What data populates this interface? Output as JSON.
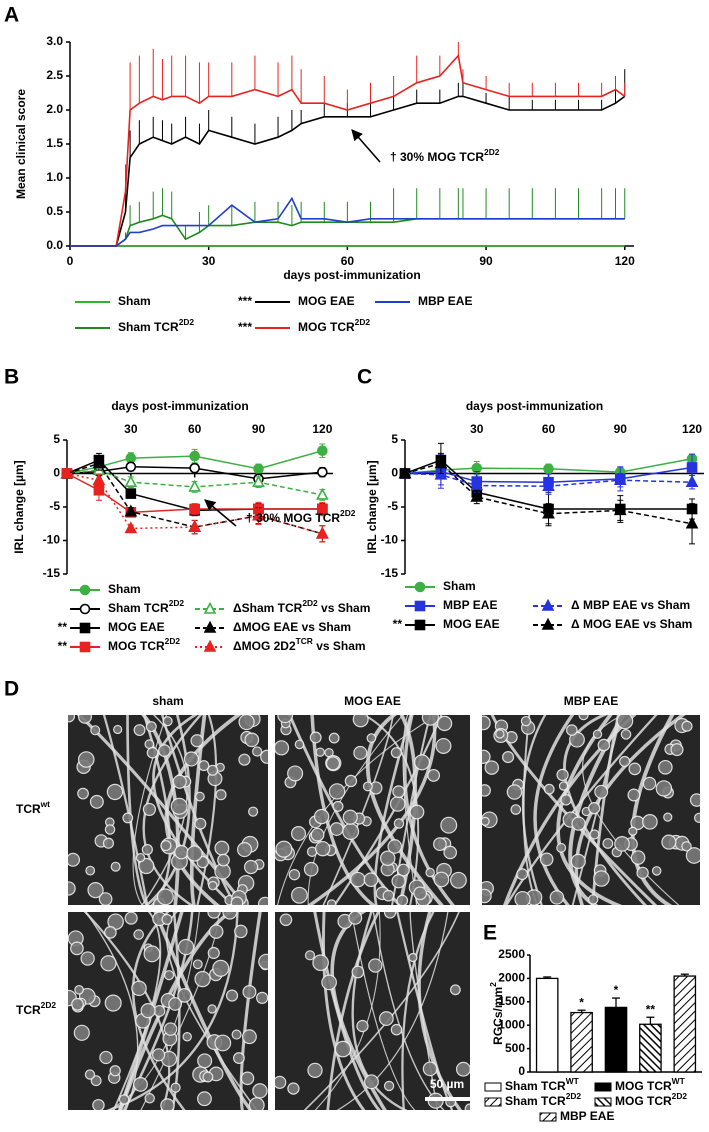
{
  "chart_data": [
    {
      "type": "line",
      "panel": "A",
      "ylabel": "Mean clinical score",
      "xlabel": "days post-immunization",
      "xlim": [
        0,
        122
      ],
      "ylim": [
        0,
        3
      ],
      "xticks": [
        0,
        30,
        60,
        90,
        120
      ],
      "yticks": [
        {
          "value": 0,
          "label": "0.0"
        },
        {
          "value": 0.5,
          "label": "0.5"
        },
        {
          "value": 1,
          "label": "1.0"
        },
        {
          "value": 1.5,
          "label": "1.5"
        },
        {
          "value": 2,
          "label": "2.0"
        },
        {
          "value": 2.5,
          "label": "2.5"
        },
        {
          "value": 3,
          "label": "3.0"
        }
      ],
      "xaxis_position": "bottom",
      "error_bars": "upper",
      "annotation": [
        "† 30% MOG TCR",
        "2D2"
      ],
      "x": [
        0,
        5,
        10,
        12,
        13,
        15,
        18,
        20,
        22,
        25,
        28,
        30,
        35,
        40,
        45,
        48,
        50,
        55,
        60,
        65,
        70,
        75,
        80,
        84,
        85,
        90,
        95,
        100,
        105,
        110,
        115,
        118,
        120
      ],
      "series": [
        {
          "name": "Sham",
          "color": "#2db52d",
          "dash": "solid",
          "values": [
            0,
            0,
            0,
            0,
            0,
            0,
            0,
            0,
            0,
            0,
            0,
            0,
            0,
            0,
            0,
            0,
            0,
            0,
            0,
            0,
            0,
            0,
            0,
            0,
            0,
            0,
            0,
            0,
            0,
            0,
            0,
            0,
            0
          ]
        },
        {
          "name": [
            "Sham TCR",
            "2D2"
          ],
          "color": "#1f8a1f",
          "dash": "solid",
          "values": [
            0,
            0,
            0,
            0.1,
            0.3,
            0.35,
            0.4,
            0.45,
            0.4,
            0.1,
            0.2,
            0.3,
            0.3,
            0.35,
            0.35,
            0.3,
            0.35,
            0.35,
            0.35,
            0.35,
            0.35,
            0.4,
            0.4,
            0.4,
            0.4,
            0.4,
            0.4,
            0.4,
            0.4,
            0.4,
            0.4,
            0.4,
            0.4
          ],
          "errors": [
            0,
            0,
            0,
            0.1,
            0.3,
            0.3,
            0.4,
            0.4,
            0.4,
            0.2,
            0.3,
            0.3,
            0.3,
            0.3,
            0.3,
            0.3,
            0.3,
            0.3,
            0.3,
            0.3,
            0.5,
            0.45,
            0.45,
            0.45,
            0.45,
            0.45,
            0.45,
            0.45,
            0.45,
            0.45,
            0.45,
            0.45,
            0.45
          ]
        },
        {
          "name": "MOG EAE",
          "significance": "***",
          "color": "#000000",
          "dash": "solid",
          "values": [
            0,
            0,
            0,
            0.5,
            1.3,
            1.5,
            1.6,
            1.55,
            1.5,
            1.6,
            1.5,
            1.7,
            1.6,
            1.5,
            1.6,
            1.7,
            1.8,
            1.9,
            1.9,
            1.9,
            2.0,
            2.1,
            2.1,
            2.2,
            2.2,
            2.1,
            2.0,
            2.0,
            2.0,
            2.0,
            2.0,
            2.1,
            2.2
          ],
          "errors": [
            0,
            0,
            0,
            0.3,
            0.4,
            0.35,
            0.3,
            0.3,
            0.3,
            0.3,
            0.3,
            0.3,
            0.3,
            0.3,
            0.3,
            0.3,
            0.2,
            0.2,
            0.2,
            0.2,
            0.2,
            0.2,
            0.2,
            0.2,
            0.2,
            0.15,
            0.2,
            0.15,
            0.15,
            0.15,
            0.15,
            0.2,
            0.4
          ]
        },
        {
          "name": [
            "MOG TCR",
            "2D2"
          ],
          "significance": "***",
          "color": "#e8231f",
          "dash": "solid",
          "values": [
            0,
            0,
            0,
            0.8,
            2.0,
            2.1,
            2.2,
            2.15,
            2.2,
            2.2,
            2.1,
            2.2,
            2.2,
            2.3,
            2.2,
            2.3,
            2.1,
            2.1,
            2.0,
            2.1,
            2.2,
            2.4,
            2.5,
            2.8,
            2.4,
            2.3,
            2.2,
            2.2,
            2.2,
            2.2,
            2.2,
            2.3,
            2.2
          ],
          "errors": [
            0,
            0,
            0,
            0.4,
            0.7,
            0.7,
            0.7,
            0.6,
            0.6,
            0.6,
            0.6,
            0.5,
            0.5,
            0.5,
            0.5,
            0.5,
            0.5,
            0.4,
            0.3,
            0.3,
            0.3,
            0.4,
            0.3,
            0.2,
            0.2,
            0.2,
            0.2,
            0.2,
            0.2,
            0.2,
            0.2,
            0.2,
            0.2
          ]
        },
        {
          "name": "MBP EAE",
          "color": "#1f3fd0",
          "dash": "solid",
          "values": [
            0,
            0,
            0,
            0.1,
            0.2,
            0.2,
            0.25,
            0.3,
            0.3,
            0.3,
            0.3,
            0.3,
            0.6,
            0.35,
            0.4,
            0.7,
            0.4,
            0.4,
            0.35,
            0.4,
            0.4,
            0.4,
            0.4,
            0.4,
            0.4,
            0.4,
            0.4,
            0.4,
            0.4,
            0.4,
            0.4,
            0.4,
            0.4
          ]
        }
      ]
    },
    {
      "type": "line",
      "panel": "B",
      "ylabel": "IRL change [µm]",
      "xlabel": "days post-immunization",
      "xlim": [
        0,
        125
      ],
      "ylim": [
        -15,
        5
      ],
      "xticks": [
        30,
        60,
        90,
        120
      ],
      "yticks": [
        5,
        0,
        -5,
        -10,
        -15
      ],
      "xaxis_position": "top",
      "error_bars": "both",
      "annotation": [
        "† 30% MOG TCR",
        "2D2"
      ],
      "x": [
        0,
        15,
        30,
        60,
        90,
        120
      ],
      "series": [
        {
          "name": "Sham",
          "color": "#3cb043",
          "dash": "solid",
          "marker": "circle",
          "marker_fill": "solid",
          "values": [
            0,
            1.0,
            2.3,
            2.6,
            0.7,
            3.4
          ],
          "errors": [
            0,
            0.8,
            0.8,
            1.0,
            0.7,
            1.0
          ]
        },
        {
          "name": [
            "Sham TCR",
            "2D2"
          ],
          "color": "#000000",
          "dash": "solid",
          "marker": "circle",
          "marker_fill": "open",
          "values": [
            0,
            0.3,
            1.0,
            0.8,
            -0.8,
            0.2
          ],
          "errors": [
            0,
            0.5,
            0.6,
            0.6,
            0.7,
            0.7
          ]
        },
        {
          "name": "MOG EAE",
          "significance": "**",
          "color": "#000000",
          "dash": "solid",
          "marker": "square",
          "marker_fill": "solid",
          "values": [
            0,
            2.0,
            -3.0,
            -5.5,
            -5.3,
            -5.3
          ],
          "errors": [
            0,
            1.0,
            0.5,
            0.8,
            0.8,
            0.8
          ]
        },
        {
          "name": [
            "MOG TCR",
            "2D2"
          ],
          "significance": "**",
          "color": "#e8231f",
          "dash": "solid",
          "marker": "square",
          "marker_fill": "solid",
          "values": [
            0,
            -2.5,
            -5.8,
            -5.3,
            -5.3,
            -5.3
          ],
          "errors": [
            0,
            1.5,
            0.5,
            0.8,
            1.0,
            1.0
          ]
        },
        {
          "name": [
            "ΔSham TCR",
            "2D2",
            " vs Sham"
          ],
          "color": "#3cb043",
          "dash": "dashed",
          "marker": "triangle",
          "marker_fill": "open",
          "values": [
            0,
            0.5,
            -1.3,
            -2.0,
            -1.3,
            -3.2
          ],
          "errors": [
            0,
            0.5,
            0.8,
            0.8,
            0.8,
            0.8
          ]
        },
        {
          "name": "ΔMOG EAE vs Sham",
          "color": "#000000",
          "dash": "dashed",
          "marker": "triangle",
          "marker_fill": "solid",
          "values": [
            0,
            1.5,
            -5.7,
            -8.0,
            -6.3,
            -9.0
          ],
          "errors": [
            0,
            1.0,
            0.6,
            1.0,
            1.2,
            1.2
          ]
        },
        {
          "name": [
            "ΔMOG 2D2",
            "TCR",
            " vs Sham"
          ],
          "color": "#e8231f",
          "dash": "dotted",
          "marker": "triangle",
          "marker_fill": "solid",
          "values": [
            0,
            -1.0,
            -8.2,
            -8.0,
            -6.3,
            -9.0
          ],
          "errors": [
            0,
            0.8,
            0.5,
            1.0,
            1.3,
            1.2
          ]
        }
      ]
    },
    {
      "type": "line",
      "panel": "C",
      "ylabel": "IRL change [µm]",
      "xlabel": "days post-immunization",
      "xlim": [
        0,
        125
      ],
      "ylim": [
        -15,
        5
      ],
      "xticks": [
        30,
        60,
        90,
        120
      ],
      "yticks": [
        5,
        0,
        -5,
        -10,
        -15
      ],
      "xaxis_position": "top",
      "error_bars": "both",
      "x": [
        0,
        15,
        30,
        60,
        90,
        120
      ],
      "series": [
        {
          "name": "Sham",
          "color": "#3cb043",
          "dash": "solid",
          "marker": "circle",
          "marker_fill": "solid",
          "values": [
            0,
            0.5,
            0.8,
            0.7,
            0.2,
            2.2
          ],
          "errors": [
            0,
            1.0,
            1.0,
            0.7,
            0.7,
            0.5
          ]
        },
        {
          "name": "MBP EAE",
          "color": "#2633e0",
          "dash": "solid",
          "marker": "square",
          "marker_fill": "solid",
          "values": [
            0,
            0.3,
            -1.2,
            -1.3,
            -0.8,
            0.9
          ],
          "errors": [
            0,
            2.5,
            1.5,
            1.2,
            1.8,
            2.0
          ]
        },
        {
          "name": "MOG EAE",
          "significance": "**",
          "color": "#000000",
          "dash": "solid",
          "marker": "square",
          "marker_fill": "solid",
          "values": [
            0,
            2.0,
            -2.8,
            -5.3,
            -5.3,
            -5.3
          ],
          "errors": [
            0,
            2.5,
            1.0,
            2.5,
            2.0,
            1.5
          ]
        },
        {
          "name": "Δ MBP EAE vs Sham",
          "color": "#2633e0",
          "dash": "dashed",
          "marker": "triangle",
          "marker_fill": "solid",
          "values": [
            0,
            -0.2,
            -1.8,
            -1.9,
            -1.0,
            -1.3
          ],
          "errors": [
            0,
            1.5,
            1.0,
            1.2,
            1.0,
            1.0
          ]
        },
        {
          "name": "Δ MOG EAE vs Sham",
          "color": "#000000",
          "dash": "dashed",
          "marker": "triangle",
          "marker_fill": "solid",
          "values": [
            0,
            1.5,
            -3.5,
            -6.0,
            -5.5,
            -7.5
          ],
          "errors": [
            0,
            1.5,
            1.0,
            1.5,
            1.5,
            3.0
          ]
        }
      ]
    },
    {
      "type": "bar",
      "panel": "E",
      "ylabel": [
        "RGCs/mm",
        "2"
      ],
      "ylim": [
        0,
        2500
      ],
      "yticks": [
        0,
        500,
        1000,
        1500,
        2000,
        2500
      ],
      "categories": [
        [
          "Sham TCR",
          "WT"
        ],
        [
          "Sham TCR",
          "2D2"
        ],
        [
          "MOG TCR",
          "WT"
        ],
        [
          "MOG TCR",
          "2D2"
        ],
        "MBP EAE"
      ],
      "values": [
        2000,
        1270,
        1380,
        1020,
        2050
      ],
      "errors": [
        30,
        50,
        200,
        150,
        40
      ],
      "significance": [
        null,
        "*",
        "*",
        "**",
        null
      ],
      "fills": [
        "white",
        "hatch",
        "black",
        "hatch-dense",
        "hatch"
      ]
    }
  ],
  "micrographs": {
    "panel": "D",
    "columns": [
      "sham",
      "MOG EAE",
      "MBP EAE"
    ],
    "rows": [
      [
        "TCR",
        "wt"
      ],
      [
        "TCR",
        "2D2"
      ]
    ],
    "scale_bar": "50 µm"
  }
}
